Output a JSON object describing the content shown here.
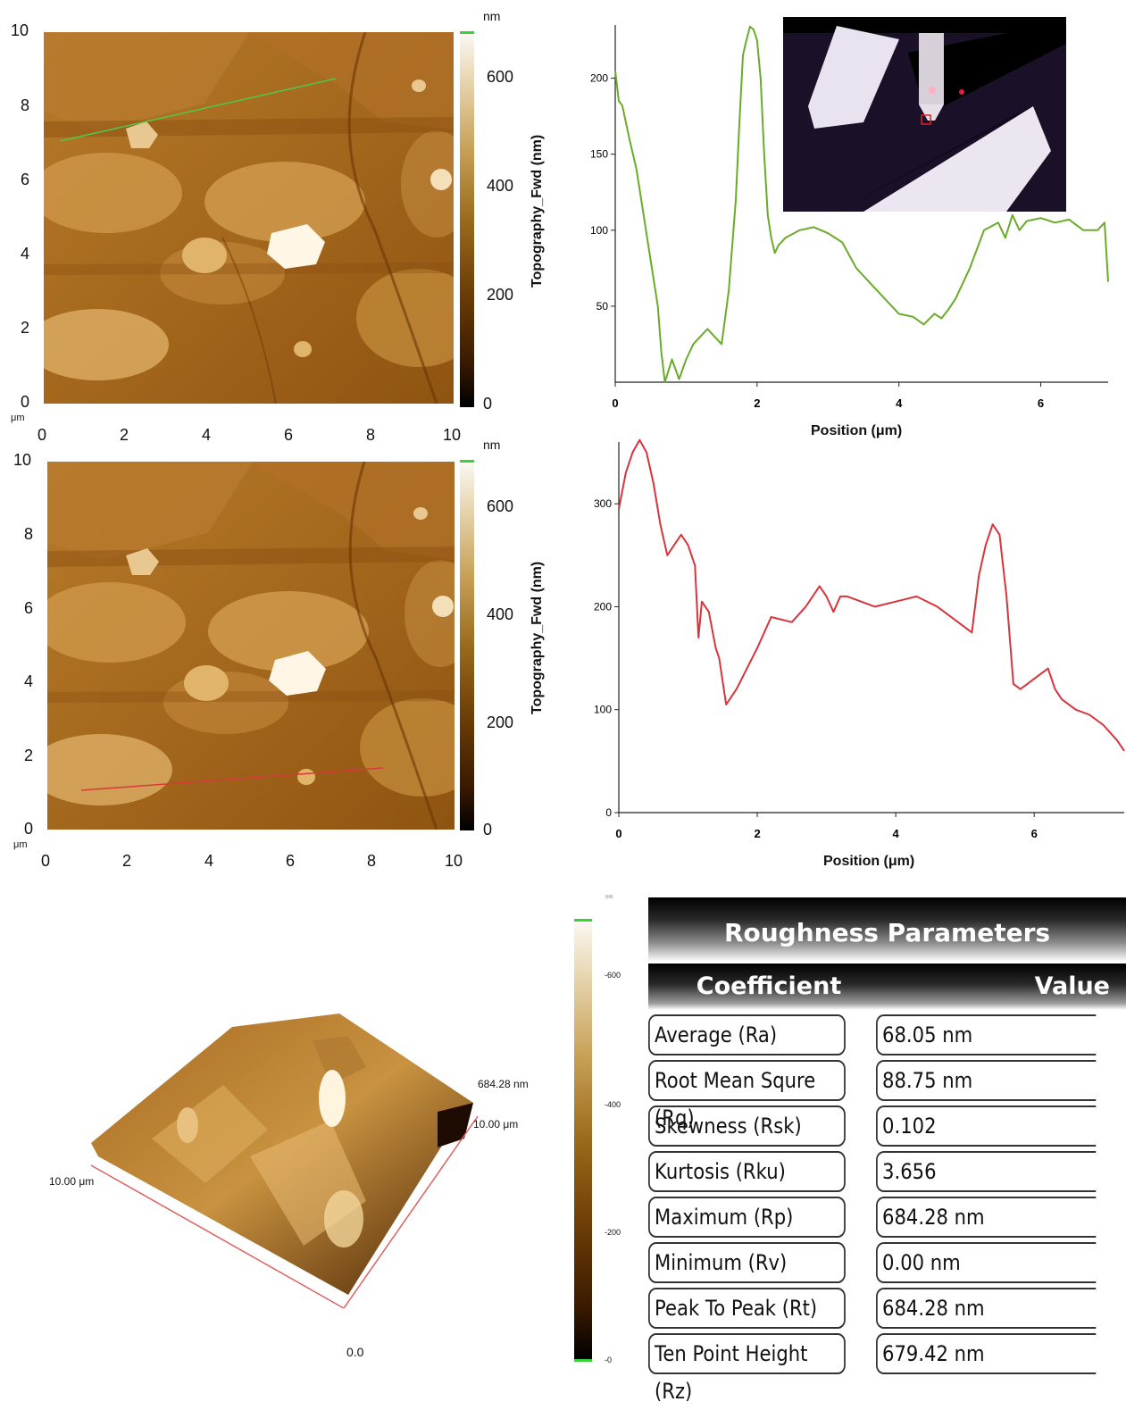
{
  "colors": {
    "profile1": "#6aab2a",
    "profile2": "#d8343c",
    "colorbar_top": "#3ad13a",
    "table_header": "#000000"
  },
  "map1": {
    "y_ticks": [
      "10",
      "8",
      "6",
      "4",
      "2",
      "0"
    ],
    "x_ticks": [
      "0",
      "2",
      "4",
      "6",
      "8",
      "10"
    ],
    "unit": "μm",
    "colorbar": {
      "unit": "nm",
      "ticks": [
        "600",
        "400",
        "200",
        "0"
      ],
      "label": "Topography_Fwd (nm)"
    }
  },
  "map2": {
    "y_ticks": [
      "10",
      "8",
      "6",
      "4",
      "2",
      "0"
    ],
    "x_ticks": [
      "0",
      "2",
      "4",
      "6",
      "8",
      "10"
    ],
    "unit": "μm",
    "colorbar": {
      "unit": "nm",
      "ticks": [
        "600",
        "400",
        "200",
        "0"
      ],
      "label": "Topography_Fwd (nm)"
    }
  },
  "surface3d": {
    "height_label": "684.28 nm",
    "y_label": "10.00 μm",
    "x_label": "10.00 μm",
    "base_label": "0.0",
    "colorbar_ticks": [
      "-600",
      "-400",
      "-200",
      "-0"
    ],
    "colorbar_unit": "nm"
  },
  "chart_data": [
    {
      "type": "line",
      "xlabel": "Position (μm)",
      "ylabel": "",
      "x_ticks": [
        0,
        2,
        4,
        6
      ],
      "y_ticks": [
        50,
        100,
        150,
        200
      ],
      "xlim": [
        0,
        6.95
      ],
      "ylim": [
        0,
        235
      ],
      "series": [
        {
          "x": [
            0,
            0.05,
            0.1,
            0.2,
            0.3,
            0.4,
            0.5,
            0.6,
            0.65,
            0.7,
            0.8,
            0.9,
            1.0,
            1.1,
            1.2,
            1.3,
            1.4,
            1.5,
            1.6,
            1.7,
            1.75,
            1.8,
            1.85,
            1.9,
            1.95,
            2.0,
            2.05,
            2.1,
            2.15,
            2.2,
            2.25,
            2.3,
            2.4,
            2.6,
            2.8,
            3.0,
            3.2,
            3.4,
            3.6,
            3.8,
            4.0,
            4.2,
            4.35,
            4.5,
            4.6,
            4.7,
            4.8,
            5.0,
            5.2,
            5.4,
            5.5,
            5.6,
            5.7,
            5.8,
            6.0,
            6.2,
            6.4,
            6.6,
            6.8,
            6.9,
            6.95
          ],
          "y": [
            205,
            185,
            182,
            160,
            140,
            110,
            80,
            50,
            20,
            0,
            15,
            2,
            15,
            25,
            30,
            35,
            30,
            25,
            60,
            120,
            170,
            215,
            225,
            234,
            232,
            225,
            200,
            150,
            110,
            95,
            85,
            90,
            95,
            100,
            102,
            98,
            92,
            75,
            65,
            55,
            45,
            43,
            38,
            45,
            42,
            48,
            55,
            75,
            100,
            105,
            95,
            110,
            100,
            106,
            108,
            105,
            107,
            100,
            100,
            105,
            66
          ]
        }
      ]
    },
    {
      "type": "line",
      "xlabel": "Position (μm)",
      "ylabel": "",
      "x_ticks": [
        0,
        2,
        4,
        6
      ],
      "y_ticks": [
        0,
        100,
        200,
        300
      ],
      "xlim": [
        0,
        7.3
      ],
      "ylim": [
        0,
        360
      ],
      "series": [
        {
          "x": [
            0,
            0.1,
            0.2,
            0.3,
            0.4,
            0.5,
            0.6,
            0.7,
            0.8,
            0.9,
            1.0,
            1.1,
            1.15,
            1.2,
            1.3,
            1.4,
            1.45,
            1.55,
            1.7,
            2.0,
            2.2,
            2.5,
            2.7,
            2.9,
            3.0,
            3.1,
            3.2,
            3.3,
            3.5,
            3.7,
            4.0,
            4.3,
            4.6,
            4.9,
            5.1,
            5.2,
            5.3,
            5.4,
            5.5,
            5.6,
            5.7,
            5.8,
            5.9,
            6.0,
            6.2,
            6.3,
            6.4,
            6.6,
            6.8,
            7.0,
            7.2,
            7.3
          ],
          "y": [
            295,
            330,
            350,
            362,
            350,
            320,
            280,
            250,
            260,
            270,
            260,
            240,
            170,
            205,
            195,
            160,
            150,
            105,
            120,
            160,
            190,
            185,
            200,
            220,
            210,
            195,
            210,
            210,
            205,
            200,
            205,
            210,
            200,
            185,
            175,
            230,
            260,
            280,
            270,
            210,
            125,
            120,
            125,
            130,
            140,
            120,
            110,
            100,
            95,
            85,
            70,
            60
          ]
        }
      ]
    }
  ],
  "roughness": {
    "title": "Roughness Parameters",
    "col_coefficient": "Coefficient",
    "col_value": "Value",
    "rows": [
      {
        "coef": "Average (Ra)",
        "value": "68.05 nm"
      },
      {
        "coef": "Root Mean Squre (Rq)",
        "value": "88.75 nm"
      },
      {
        "coef": "Skewness (Rsk)",
        "value": "0.102"
      },
      {
        "coef": "Kurtosis (Rku)",
        "value": "3.656"
      },
      {
        "coef": "Maximum (Rp)",
        "value": "684.28 nm"
      },
      {
        "coef": "Minimum (Rv)",
        "value": "0.00 nm"
      },
      {
        "coef": "Peak To Peak (Rt)",
        "value": "684.28 nm"
      },
      {
        "coef": "Ten Point Height (Rz)",
        "value": "679.42 nm"
      }
    ]
  }
}
